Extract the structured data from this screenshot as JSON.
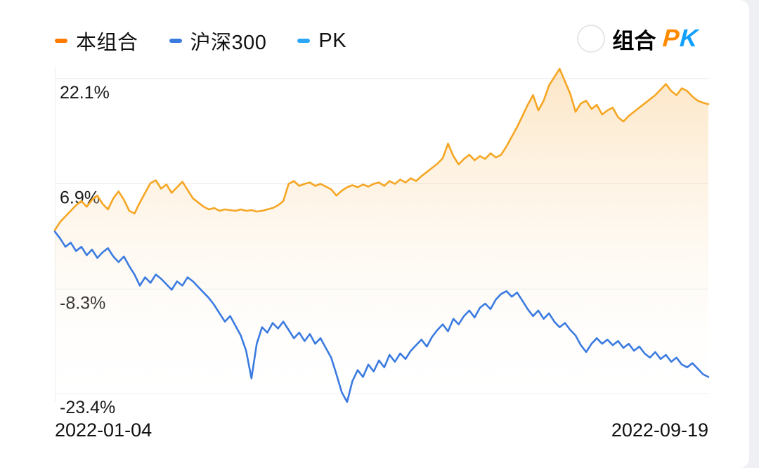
{
  "legend": {
    "items": [
      {
        "label": "本组合",
        "color": "#FF7A00"
      },
      {
        "label": "沪深300",
        "color": "#3B7BE0"
      },
      {
        "label": "PK",
        "color": "#2BA7FA"
      }
    ]
  },
  "pk_button": {
    "prefix": "组合",
    "p_letter": "P",
    "k_letter": "K",
    "p_color": "#FF8A00",
    "k_color": "#12A0FF"
  },
  "chart_data": {
    "type": "line",
    "title": "",
    "x_labels": [
      "2022-01-04",
      "2022-09-19"
    ],
    "ylim": [
      -24.6,
      23.8
    ],
    "grid": "horizontal",
    "legend_position": "top-left",
    "gridlines": [
      {
        "value": 22.1,
        "label": "22.1%"
      },
      {
        "value": 6.9,
        "label": "6.9%"
      },
      {
        "value": -8.3,
        "label": "-8.3%"
      },
      {
        "value": -23.4,
        "label": "-23.4%"
      }
    ],
    "series": [
      {
        "name": "本组合",
        "color": "#F5A623",
        "fill": true,
        "values": [
          0.2,
          1.4,
          2.2,
          3.0,
          3.8,
          4.4,
          3.6,
          4.6,
          5.2,
          4.0,
          3.2,
          4.8,
          5.8,
          4.6,
          3.0,
          2.6,
          4.2,
          5.6,
          7.0,
          7.4,
          6.2,
          6.8,
          5.6,
          6.4,
          7.2,
          6.0,
          4.8,
          4.2,
          3.6,
          3.2,
          3.4,
          3.0,
          3.2,
          3.1,
          3.0,
          3.2,
          3.0,
          3.1,
          2.9,
          3.0,
          3.2,
          3.4,
          3.8,
          4.4,
          6.9,
          7.3,
          6.6,
          6.9,
          7.1,
          6.6,
          6.9,
          6.5,
          6.1,
          5.2,
          5.9,
          6.4,
          6.7,
          6.4,
          6.8,
          6.5,
          6.9,
          7.1,
          6.6,
          7.3,
          6.9,
          7.5,
          7.1,
          7.7,
          7.3,
          8.0,
          8.6,
          9.2,
          9.8,
          10.6,
          12.7,
          10.9,
          9.7,
          10.5,
          11.1,
          10.3,
          10.9,
          10.5,
          11.3,
          10.7,
          11.1,
          12.3,
          13.7,
          15.1,
          16.7,
          18.3,
          19.7,
          17.5,
          18.9,
          21.1,
          22.3,
          23.5,
          21.7,
          19.9,
          17.3,
          18.5,
          18.9,
          17.7,
          18.3,
          16.9,
          17.5,
          17.9,
          16.5,
          15.9,
          16.7,
          17.3,
          17.9,
          18.5,
          19.1,
          19.7,
          20.5,
          21.3,
          20.3,
          19.7,
          20.7,
          20.3,
          19.5,
          18.9,
          18.6,
          18.4
        ]
      },
      {
        "name": "沪深300",
        "color": "#3B7BE0",
        "fill": false,
        "values": [
          0.0,
          -1.0,
          -2.2,
          -1.6,
          -2.8,
          -2.2,
          -3.4,
          -2.6,
          -3.8,
          -3.0,
          -2.4,
          -3.6,
          -4.4,
          -3.6,
          -5.0,
          -6.2,
          -7.8,
          -6.6,
          -7.4,
          -6.2,
          -6.8,
          -7.6,
          -8.4,
          -7.2,
          -7.8,
          -6.6,
          -7.2,
          -8.0,
          -8.8,
          -9.6,
          -10.6,
          -11.8,
          -13.0,
          -12.2,
          -13.6,
          -15.0,
          -17.2,
          -21.2,
          -16.2,
          -13.8,
          -14.6,
          -13.2,
          -14.0,
          -13.0,
          -14.2,
          -15.4,
          -14.6,
          -15.8,
          -14.8,
          -16.2,
          -15.4,
          -16.8,
          -18.2,
          -20.6,
          -23.2,
          -24.6,
          -21.6,
          -20.0,
          -21.0,
          -19.2,
          -20.2,
          -18.6,
          -19.6,
          -17.8,
          -18.8,
          -17.6,
          -18.4,
          -17.2,
          -16.4,
          -15.6,
          -16.6,
          -15.2,
          -14.2,
          -13.4,
          -14.4,
          -12.6,
          -13.4,
          -12.2,
          -11.4,
          -12.4,
          -11.0,
          -10.4,
          -11.2,
          -9.8,
          -9.0,
          -8.6,
          -9.4,
          -8.8,
          -10.0,
          -11.2,
          -12.2,
          -11.4,
          -12.6,
          -11.8,
          -13.0,
          -13.8,
          -13.2,
          -14.2,
          -15.0,
          -16.4,
          -17.4,
          -16.2,
          -15.4,
          -16.2,
          -15.6,
          -16.4,
          -15.8,
          -16.8,
          -16.2,
          -17.2,
          -16.6,
          -17.6,
          -18.2,
          -17.4,
          -18.4,
          -17.8,
          -18.8,
          -18.2,
          -19.2,
          -19.6,
          -19.0,
          -19.8,
          -20.6,
          -21.0
        ]
      }
    ]
  }
}
